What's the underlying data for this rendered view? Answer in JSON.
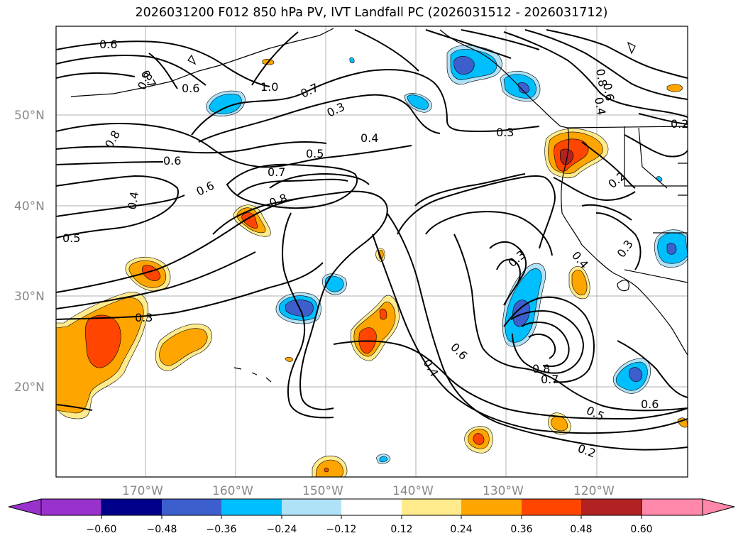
{
  "title": "2026031200 F012 850 hPa PV, IVT Landfall PC (2026031512 - 2026031712)",
  "lat_labels": [
    "50°N",
    "40°N",
    "30°N",
    "20°N"
  ],
  "lon_labels": [
    "170°W",
    "160°W",
    "150°W",
    "140°W",
    "130°W",
    "120°W"
  ],
  "contour_labels": [
    "0.6",
    "0.7",
    "0.8",
    "0.6",
    "1.0",
    "0.7",
    "0.3",
    "0.3",
    "0.4",
    "0.5",
    "0.8",
    "0.6",
    "0.7",
    "0.6",
    "0.8",
    "0.4",
    "0.5",
    "0.3",
    "0.2",
    "0.3",
    "0.4",
    "0.3",
    "0.6",
    "0.8",
    "0.7",
    "0.5",
    "0.2",
    "0.6",
    "0.8",
    "0.6",
    "0.4",
    "0.2",
    "0.4"
  ],
  "colorbar": {
    "ticks": [
      "−0.60",
      "−0.48",
      "−0.36",
      "−0.24",
      "−0.12",
      "0.12",
      "0.24",
      "0.36",
      "0.48",
      "0.60"
    ],
    "colors": [
      "#9932cc",
      "#00008b",
      "#3c5fcd",
      "#00bfff",
      "#b0e2f7",
      "#ffffff",
      "#ffea8c",
      "#ffa500",
      "#ff4500",
      "#b22222",
      "#ff88aa"
    ]
  },
  "shading_colors": {
    "strong_pos": "#ff4500",
    "pos": "#ffa500",
    "weak_pos": "#ffea8c",
    "weak_neg": "#b0e2f7",
    "neg": "#00bfff",
    "strong_neg": "#3c5fcd"
  }
}
